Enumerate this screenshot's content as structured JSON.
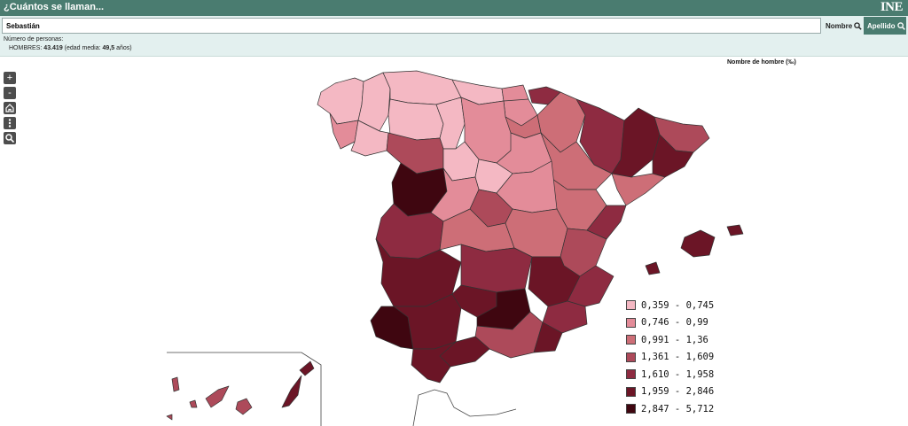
{
  "app": {
    "title": "¿Cuántos se llaman...",
    "logo": "INE"
  },
  "search": {
    "value": "Sebastián",
    "nombre_label": "Nombre",
    "apellido_label": "Apellido"
  },
  "info": {
    "label": "Número de personas:",
    "sex": "HOMBRES:",
    "count": "43.419",
    "age_prefix": "(edad media:",
    "age": "49,5",
    "age_suffix": "años)"
  },
  "map_title": "Nombre de hombre (‰)",
  "zoom_controls": [
    "+",
    "-",
    "home-icon",
    "more-icon",
    "search-icon"
  ],
  "legend": [
    {
      "label": "0,359 - 0,745",
      "color": "#f4b8c3"
    },
    {
      "label": "0,746 - 0,99",
      "color": "#e38c99"
    },
    {
      "label": "0,991 - 1,36",
      "color": "#cd6e77"
    },
    {
      "label": "1,361 - 1,609",
      "color": "#ad4a5a"
    },
    {
      "label": "1,610 - 1,958",
      "color": "#8e2b41"
    },
    {
      "label": "1,959 - 2,846",
      "color": "#6b1526"
    },
    {
      "label": "2,847 - 5,712",
      "color": "#3f0610"
    }
  ]
}
